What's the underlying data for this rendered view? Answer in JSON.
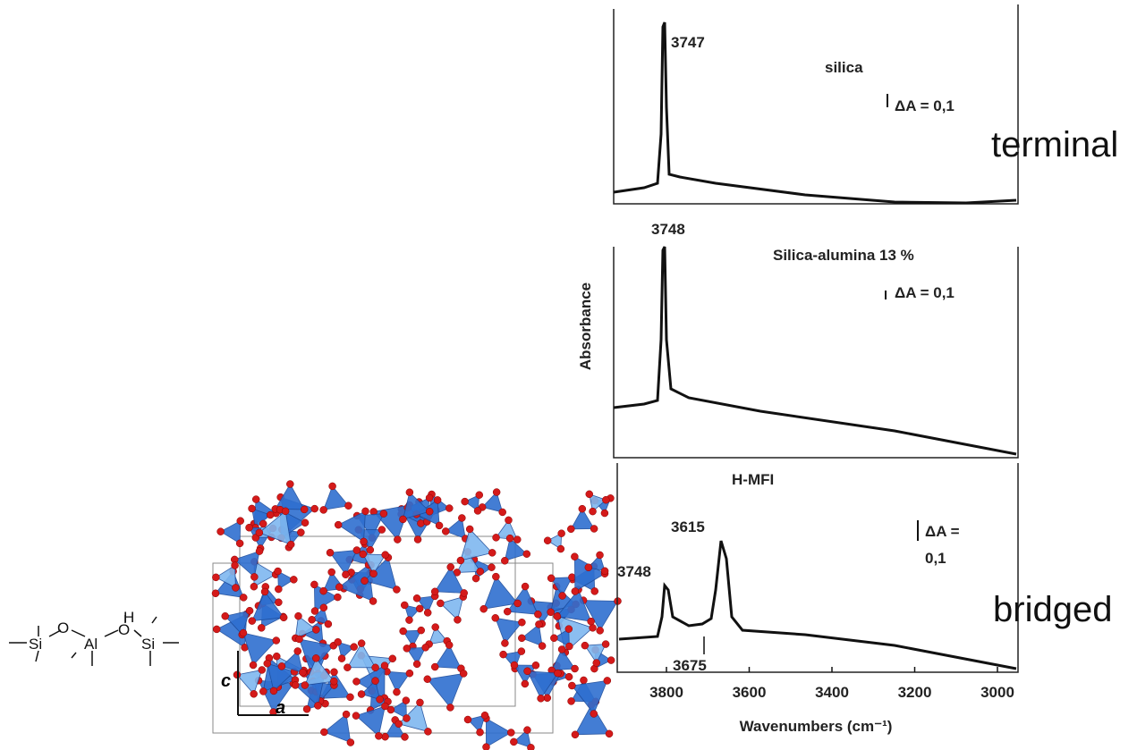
{
  "side_labels": {
    "terminal": "terminal",
    "bridged": "bridged"
  },
  "y_axis_label": "Absorbance",
  "x_axis": {
    "label": "Wavenumbers (cm⁻¹)",
    "ticks": [
      "3800",
      "3600",
      "3400",
      "3200",
      "3000"
    ]
  },
  "panels": [
    {
      "title": "silica",
      "peaks": [
        "3747"
      ],
      "scale": "ΔA = 0,1"
    },
    {
      "title": "Silica-alumina 13 %",
      "peaks": [
        "3748"
      ],
      "scale": "ΔA = 0,1"
    },
    {
      "title": "H-MFI",
      "peaks": [
        "3748",
        "3615",
        "3675"
      ],
      "scale": [
        "ΔA =",
        "0,1"
      ]
    }
  ],
  "structure": {
    "axis_c": "c",
    "axis_a": "a"
  },
  "molecule": {
    "h": "H",
    "o1": "O",
    "al": "Al",
    "o2": "O",
    "si1": "Si",
    "si2": "Si"
  }
}
